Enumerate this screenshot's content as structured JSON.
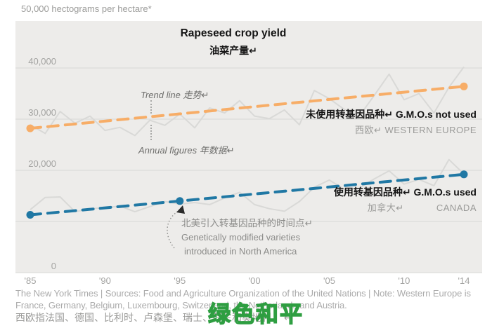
{
  "header": {
    "unit_label": "50,000 hectograms per hectare*",
    "title": "Rapeseed crop yield",
    "title_zh": "油菜产量↵"
  },
  "annotations": {
    "trend_line": "Trend line  走势↵",
    "annual_figures": "Annual figures  年数据↵",
    "gmo_not_used": "未使用转基因品种↵ G.M.O.s not used",
    "western_europe_zh": "西欧↵",
    "western_europe_en": "WESTERN EUROPE",
    "gmo_used": "使用转基因品种↵ G.M.O.s used",
    "canada_zh": "加拿大↵",
    "canada_en": "CANADA",
    "gm_intro_zh": "北美引入转基因品种的时间点↵",
    "gm_intro_en1": "Genetically modified varieties",
    "gm_intro_en2": "introduced in North America"
  },
  "footer": {
    "source_line1": "The New York Times  |  Sources: Food and Agriculture Organization of the United Nations  |  Note: Western Europe is",
    "source_line2": "France, Germany, Belgium, Luxembourg, Switzerland, the Netherlands and Austria.",
    "note_zh": "西欧指法国、德国、比利时、卢森堡、瑞士、荷兰和奥地利。 ↵",
    "watermark": "绿色和平"
  },
  "colors": {
    "orange": "#F7AD67",
    "blue": "#2078A4",
    "plot_background": "#EDECEA",
    "gridline": "#D8D8D6",
    "annual_line": "#D9D9D7",
    "watermark_green": "#2E9E41"
  },
  "chart_data": {
    "type": "line",
    "title": "Rapeseed crop yield",
    "subtitle_zh": "油菜产量",
    "unit": "hectograms per hectare",
    "ylim": [
      0,
      50000
    ],
    "xlim": [
      1985,
      2014
    ],
    "grid": "horizontal gridlines every 10,000; gray plot panel; no legend box (direct labels)",
    "gridline_values": [
      40000,
      30000,
      20000,
      10000,
      0
    ],
    "y_axis_labels": [
      {
        "text": "40,000",
        "value": 40000
      },
      {
        "text": "30,000",
        "value": 30000
      },
      {
        "text": "20,000",
        "value": 20000
      },
      {
        "text": "0",
        "value": 0
      }
    ],
    "x_axis_ticks": [
      {
        "label": "'85",
        "year": 1985
      },
      {
        "label": "'90",
        "year": 1990
      },
      {
        "label": "'95",
        "year": 1995
      },
      {
        "label": "'00",
        "year": 2000
      },
      {
        "label": "'05",
        "year": 2005
      },
      {
        "label": "'10",
        "year": 2010
      },
      {
        "label": "'14",
        "year": 2014
      }
    ],
    "series": [
      {
        "id": "western_europe_annual",
        "name": "Western Europe — annual figures (G.M.O.s not used)",
        "style": "annual",
        "points": [
          [
            1985,
            28900
          ],
          [
            1986,
            27200
          ],
          [
            1987,
            31500
          ],
          [
            1988,
            29200
          ],
          [
            1989,
            30600
          ],
          [
            1990,
            27800
          ],
          [
            1991,
            28400
          ],
          [
            1992,
            26800
          ],
          [
            1993,
            29800
          ],
          [
            1994,
            28800
          ],
          [
            1995,
            31000
          ],
          [
            1996,
            28300
          ],
          [
            1997,
            32200
          ],
          [
            1998,
            31200
          ],
          [
            1999,
            33600
          ],
          [
            2000,
            30600
          ],
          [
            2001,
            30100
          ],
          [
            2002,
            31800
          ],
          [
            2003,
            28900
          ],
          [
            2004,
            35600
          ],
          [
            2005,
            34000
          ],
          [
            2006,
            31900
          ],
          [
            2007,
            30600
          ],
          [
            2008,
            34600
          ],
          [
            2009,
            38800
          ],
          [
            2010,
            33800
          ],
          [
            2011,
            35000
          ],
          [
            2012,
            31200
          ],
          [
            2013,
            36200
          ],
          [
            2014,
            40200
          ]
        ]
      },
      {
        "id": "canada_annual",
        "name": "Canada — annual figures (G.M.O.s used)",
        "style": "annual",
        "points": [
          [
            1985,
            12300
          ],
          [
            1986,
            14700
          ],
          [
            1987,
            14800
          ],
          [
            1988,
            11900
          ],
          [
            1989,
            12500
          ],
          [
            1990,
            12700
          ],
          [
            1991,
            13000
          ],
          [
            1992,
            11900
          ],
          [
            1993,
            12900
          ],
          [
            1994,
            13900
          ],
          [
            1995,
            13400
          ],
          [
            1996,
            13700
          ],
          [
            1997,
            13300
          ],
          [
            1998,
            14600
          ],
          [
            1999,
            15700
          ],
          [
            2000,
            13300
          ],
          [
            2001,
            12500
          ],
          [
            2002,
            12000
          ],
          [
            2003,
            13900
          ],
          [
            2004,
            16700
          ],
          [
            2005,
            18100
          ],
          [
            2006,
            16300
          ],
          [
            2007,
            16500
          ],
          [
            2008,
            18300
          ],
          [
            2009,
            19900
          ],
          [
            2010,
            17300
          ],
          [
            2011,
            18200
          ],
          [
            2012,
            17000
          ],
          [
            2013,
            22100
          ],
          [
            2014,
            19300
          ]
        ]
      },
      {
        "id": "western_europe_trend",
        "name": "Western Europe — trend line (G.M.O.s not used)",
        "style": "trend",
        "color": "#F7AD67",
        "dots": [
          1985,
          2014
        ],
        "points": [
          [
            1985,
            28200
          ],
          [
            2014,
            36400
          ]
        ]
      },
      {
        "id": "canada_trend",
        "name": "Canada — trend line (G.M.O.s used); dot at 1995 marks G.M. introduction in North America",
        "style": "trend",
        "color": "#2078A4",
        "dots": [
          1985,
          1995,
          2014
        ],
        "points": [
          [
            1985,
            11300
          ],
          [
            1995,
            14000
          ],
          [
            2014,
            19200
          ]
        ]
      }
    ]
  }
}
